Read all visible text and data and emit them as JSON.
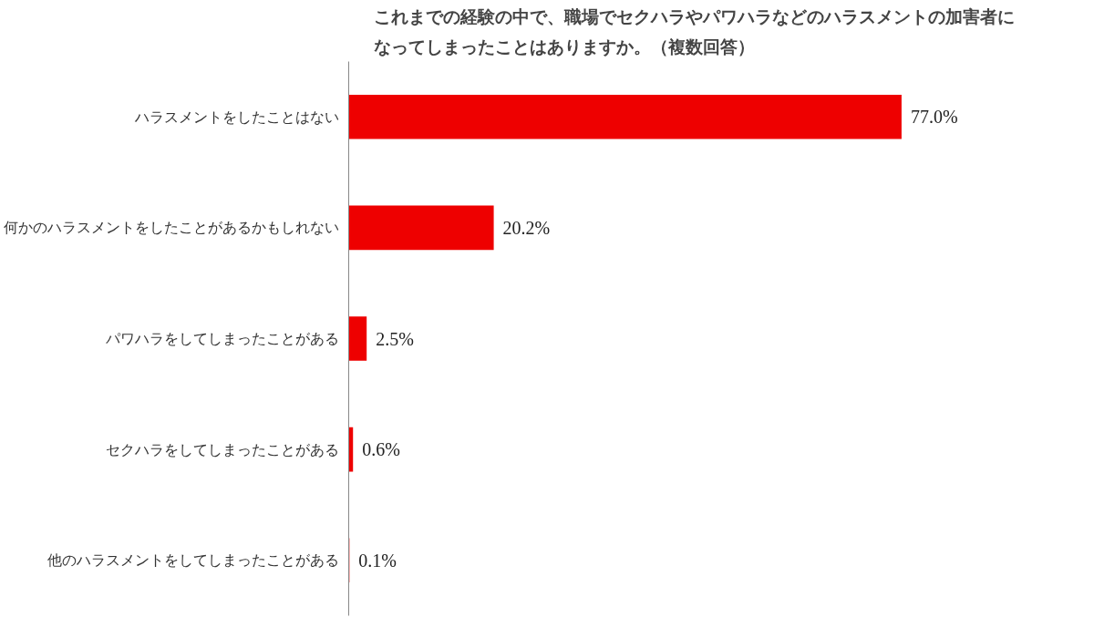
{
  "chart_data": {
    "type": "bar",
    "orientation": "horizontal",
    "title": "これまでの経験の中で、職場でセクハラやパワハラなどのハラスメントの加害者になってしまったことはありますか。（複数回答）",
    "categories": [
      "ハラスメントをしたことはない",
      "何かのハラスメントをしたことがあるかもしれない",
      "パワハラをしてしまったことがある",
      "セクハラをしてしまったことがある",
      "他のハラスメントをしてしまったことがある"
    ],
    "values": [
      77.0,
      20.2,
      2.5,
      0.6,
      0.1
    ],
    "value_labels": [
      "77.0%",
      "20.2%",
      "2.5%",
      "0.6%",
      "0.1%"
    ],
    "color": "#ee0000",
    "tick_labels": "y",
    "grid": false
  }
}
